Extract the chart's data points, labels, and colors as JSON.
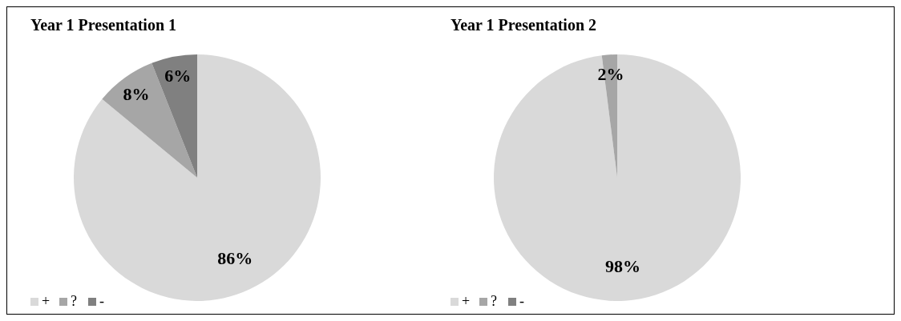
{
  "chart_data": [
    {
      "type": "pie",
      "title": "Year 1 Presentation 1",
      "categories": [
        "+",
        "?",
        "-"
      ],
      "values": [
        86,
        8,
        6
      ],
      "colors": [
        "#d9d9d9",
        "#a6a6a6",
        "#808080"
      ],
      "value_labels": [
        "86%",
        "8%",
        "6%"
      ],
      "legend": "bottom left"
    },
    {
      "type": "pie",
      "title": "Year 1 Presentation 2",
      "categories": [
        "+",
        "?",
        "-"
      ],
      "values": [
        98,
        2,
        0
      ],
      "colors": [
        "#d9d9d9",
        "#a6a6a6",
        "#808080"
      ],
      "value_labels": [
        "98%",
        "2%",
        null
      ],
      "legend": "bottom left"
    }
  ]
}
